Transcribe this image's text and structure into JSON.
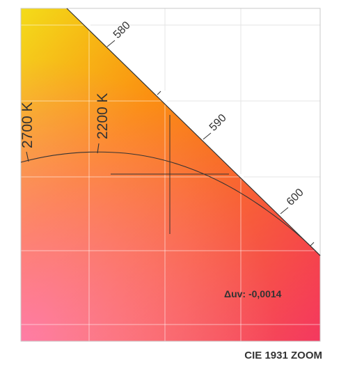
{
  "diagram": {
    "footer_title": "CIE 1931 ZOOM",
    "wavelength_labels": [
      "580",
      "590",
      "600"
    ],
    "cct_labels": [
      "2700 K",
      "2200 K"
    ],
    "duv_text": "Δuv: -0,0014",
    "colors": {
      "yellow": "#f3dc1a",
      "orange": "#fb8a05",
      "red": "#f20d3c",
      "pink": "#ff5fa0",
      "grid": "#ffffff",
      "line": "#333333",
      "frame": "#c9c9c9"
    }
  }
}
